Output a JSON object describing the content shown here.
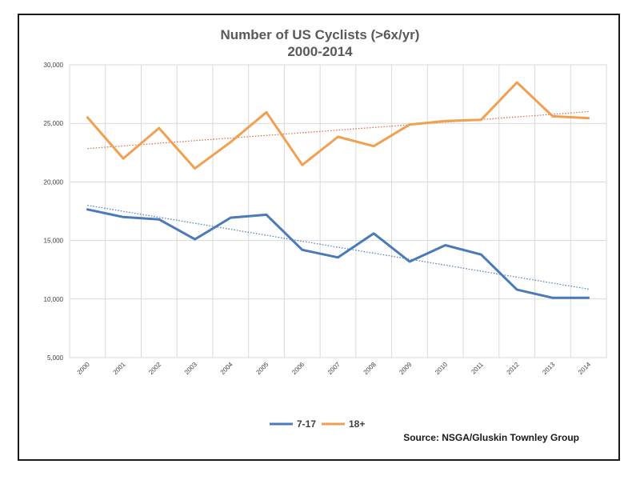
{
  "chart_data": {
    "type": "line",
    "title": "Number of US Cyclists (>6x/yr)",
    "subtitle": "2000-2014",
    "x": [
      "2000",
      "2001",
      "2002",
      "2003",
      "2004",
      "2005",
      "2006",
      "2007",
      "2008",
      "2009",
      "2010",
      "2011",
      "2012",
      "2013",
      "2014"
    ],
    "ylim": [
      5000,
      30000
    ],
    "yticks": [
      5000,
      10000,
      15000,
      20000,
      25000,
      30000
    ],
    "ytick_labels": [
      "5,000",
      "10,000",
      "15,000",
      "20,000",
      "25,000",
      "30,000"
    ],
    "grid": true,
    "legend_position": "bottom",
    "series": [
      {
        "name": "7-17",
        "color": "#4a7ab8",
        "values": [
          17650,
          17000,
          16800,
          15100,
          16950,
          17200,
          14200,
          13550,
          15600,
          13200,
          14600,
          13800,
          10800,
          10100,
          10100
        ],
        "trendline": {
          "type": "linear",
          "start": 18000,
          "end": 10850,
          "color": "#4a7ab8"
        }
      },
      {
        "name": "18+",
        "color": "#f0a050",
        "values": [
          25500,
          22000,
          24600,
          21150,
          23400,
          25950,
          21450,
          23850,
          23050,
          24900,
          25200,
          25300,
          28500,
          25600,
          25450
        ],
        "trendline": {
          "type": "linear",
          "start": 22850,
          "end": 26000,
          "color": "#e0604a"
        }
      }
    ],
    "source": "Source: NSGA/Gluskin Townley Group"
  }
}
